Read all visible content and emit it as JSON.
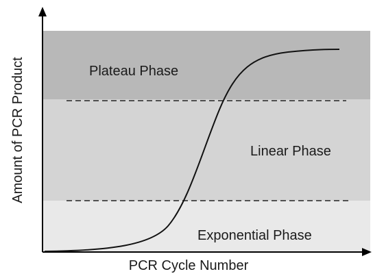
{
  "axes": {
    "x_label": "PCR Cycle Number",
    "y_label": "Amount of PCR Product"
  },
  "phases": [
    {
      "label": "Plateau Phase"
    },
    {
      "label": "Linear Phase"
    },
    {
      "label": "Exponential Phase"
    }
  ]
}
